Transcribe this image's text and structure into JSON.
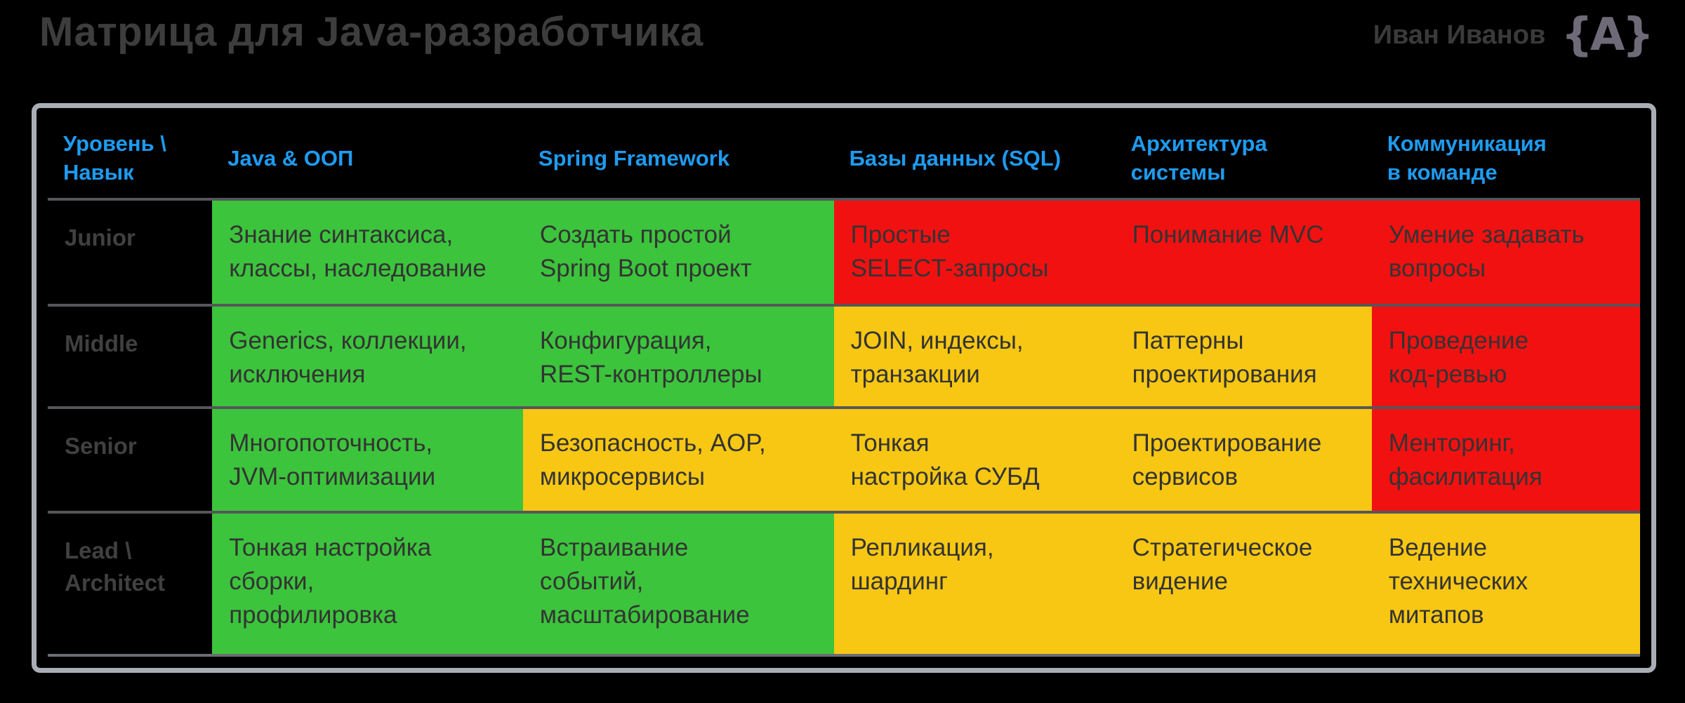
{
  "page": {
    "background": "#000000"
  },
  "header": {
    "title": "Матрица для Java-разработчика",
    "author": "Иван Иванов",
    "logo_icon": "code-braces-avatar-icon",
    "logo_glyph": "{А}"
  },
  "colors": {
    "background": "#000000",
    "header_text_blue": "#1e9bf0",
    "frame_border": "#a9aeb6",
    "row_separator": "#55565a",
    "cell_text": "#333333",
    "muted_text": "#3d3d3d",
    "logo_gray": "#6f6a78"
  },
  "chart_data": {
    "type": "table",
    "title": "Матрица для Java-разработчика",
    "columns": [
      "Уровень \\\nНавык",
      "Java & ООП",
      "Spring Framework",
      "Базы данных (SQL)",
      "Архитектура системы",
      "Коммуникация\nв команде"
    ],
    "status_colors": {
      "green": "#3cc43c",
      "yellow": "#f7c713",
      "red": "#f21111"
    },
    "rows": [
      {
        "level": "Junior",
        "cells": [
          {
            "text": "Знание синтаксиса,\nклассы, наследование",
            "status": "green"
          },
          {
            "text": "Создать простой\nSpring Boot проект",
            "status": "green"
          },
          {
            "text": "Простые\nSELECT-запросы",
            "status": "red"
          },
          {
            "text": "Понимание MVC",
            "status": "red"
          },
          {
            "text": "Умение задавать\nвопросы",
            "status": "red"
          }
        ]
      },
      {
        "level": "Middle",
        "cells": [
          {
            "text": "Generics, коллекции,\nисключения",
            "status": "green"
          },
          {
            "text": "Конфигурация,\nREST-контроллеры",
            "status": "green"
          },
          {
            "text": "JOIN, индексы,\nтранзакции",
            "status": "yellow"
          },
          {
            "text": "Паттерны\nпроектирования",
            "status": "yellow"
          },
          {
            "text": "Проведение\nкод-ревью",
            "status": "red"
          }
        ]
      },
      {
        "level": "Senior",
        "cells": [
          {
            "text": "Многопоточность,\nJVM-оптимизации",
            "status": "green"
          },
          {
            "text": "Безопасность, AOP,\nмикросервисы",
            "status": "yellow"
          },
          {
            "text": "Тонкая\nнастройка СУБД",
            "status": "yellow"
          },
          {
            "text": "Проектирование\nсервисов",
            "status": "yellow"
          },
          {
            "text": "Менторинг,\nфасилитация",
            "status": "red"
          }
        ]
      },
      {
        "level": "Lead \\\nArchitect",
        "cells": [
          {
            "text": "Тонкая настройка\nсборки,\nпрофилировка",
            "status": "green"
          },
          {
            "text": "Встраивание\nсобытий,\nмасштабирование",
            "status": "green"
          },
          {
            "text": "Репликация,\nшардинг",
            "status": "yellow"
          },
          {
            "text": "Стратегическое\nвидение",
            "status": "yellow"
          },
          {
            "text": "Ведение\nтехнических\nмитапов",
            "status": "yellow"
          }
        ]
      }
    ]
  }
}
